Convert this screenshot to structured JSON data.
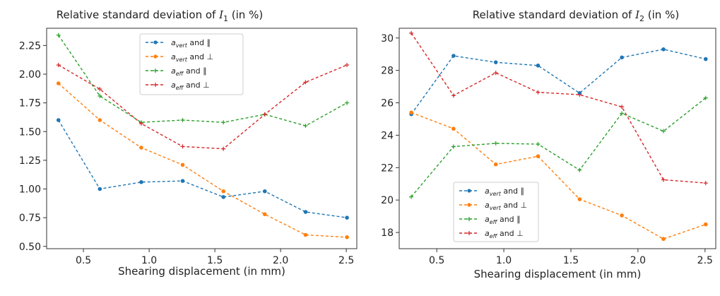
{
  "chart_data": [
    {
      "type": "line",
      "title": "Relative standard deviation of I₁ (in %)",
      "title_parts": {
        "pre": "Relative standard deviation of ",
        "var": "I",
        "sub": "1",
        "post": " (in %)"
      },
      "xlabel": "Shearing displacement (in mm)",
      "ylabel": "",
      "xlim": [
        0.22,
        2.58
      ],
      "ylim": [
        0.48,
        2.4
      ],
      "xticks": [
        0.5,
        1.0,
        1.5,
        2.0,
        2.5
      ],
      "xtick_labels": [
        "0.5",
        "1.0",
        "1.5",
        "2.0",
        "2.5"
      ],
      "yticks": [
        0.5,
        0.75,
        1.0,
        1.25,
        1.5,
        1.75,
        2.0,
        2.25
      ],
      "ytick_labels": [
        "0.50",
        "0.75",
        "1.00",
        "1.25",
        "1.50",
        "1.75",
        "2.00",
        "2.25"
      ],
      "grid": false,
      "legend_position": "upper-center",
      "x": [
        0.31,
        0.625,
        0.94,
        1.255,
        1.565,
        1.88,
        2.19,
        2.505
      ],
      "series": [
        {
          "label_base": "a",
          "label_sub": "vert",
          "label_rel": "∥",
          "color": "#1f77b4",
          "marker": "circle",
          "values": [
            1.6,
            1.0,
            1.06,
            1.07,
            0.93,
            0.98,
            0.8,
            0.75
          ]
        },
        {
          "label_base": "a",
          "label_sub": "vert",
          "label_rel": "⊥",
          "color": "#ff7f0e",
          "marker": "circle",
          "values": [
            1.92,
            1.6,
            1.36,
            1.21,
            0.98,
            0.78,
            0.6,
            0.58
          ]
        },
        {
          "label_base": "a",
          "label_sub": "eff",
          "label_rel": "∥",
          "color": "#2ca02c",
          "marker": "plus",
          "values": [
            2.34,
            1.81,
            1.58,
            1.6,
            1.58,
            1.65,
            1.55,
            1.75
          ]
        },
        {
          "label_base": "a",
          "label_sub": "eff",
          "label_rel": "⊥",
          "color": "#d62728",
          "marker": "plus",
          "values": [
            2.08,
            1.87,
            1.57,
            1.37,
            1.35,
            1.65,
            1.93,
            2.08
          ]
        }
      ]
    },
    {
      "type": "line",
      "title": "Relative standard deviation of I₂ (in %)",
      "title_parts": {
        "pre": "Relative standard deviation of ",
        "var": "I",
        "sub": "2",
        "post": " (in %)"
      },
      "xlabel": "Shearing displacement (in mm)",
      "ylabel": "",
      "xlim": [
        0.22,
        2.58
      ],
      "ylim": [
        17.0,
        30.6
      ],
      "xticks": [
        0.5,
        1.0,
        1.5,
        2.0,
        2.5
      ],
      "xtick_labels": [
        "0.5",
        "1.0",
        "1.5",
        "2.0",
        "2.5"
      ],
      "yticks": [
        18,
        20,
        22,
        24,
        26,
        28,
        30
      ],
      "ytick_labels": [
        "18",
        "20",
        "22",
        "24",
        "26",
        "28",
        "30"
      ],
      "grid": false,
      "legend_position": "lower-left",
      "x": [
        0.31,
        0.625,
        0.94,
        1.255,
        1.565,
        1.88,
        2.19,
        2.505
      ],
      "series": [
        {
          "label_base": "a",
          "label_sub": "vert",
          "label_rel": "∥",
          "color": "#1f77b4",
          "marker": "circle",
          "values": [
            25.3,
            28.9,
            28.5,
            28.3,
            26.6,
            28.8,
            29.3,
            28.7
          ]
        },
        {
          "label_base": "a",
          "label_sub": "vert",
          "label_rel": "⊥",
          "color": "#ff7f0e",
          "marker": "circle",
          "values": [
            25.4,
            24.4,
            22.2,
            22.7,
            20.05,
            19.05,
            17.6,
            18.5
          ]
        },
        {
          "label_base": "a",
          "label_sub": "eff",
          "label_rel": "∥",
          "color": "#2ca02c",
          "marker": "plus",
          "values": [
            20.2,
            23.3,
            23.5,
            23.45,
            21.85,
            25.35,
            24.25,
            26.3
          ]
        },
        {
          "label_base": "a",
          "label_sub": "eff",
          "label_rel": "⊥",
          "color": "#d62728",
          "marker": "plus",
          "values": [
            30.3,
            26.45,
            27.85,
            26.65,
            26.5,
            25.75,
            21.25,
            21.05
          ]
        }
      ]
    }
  ]
}
